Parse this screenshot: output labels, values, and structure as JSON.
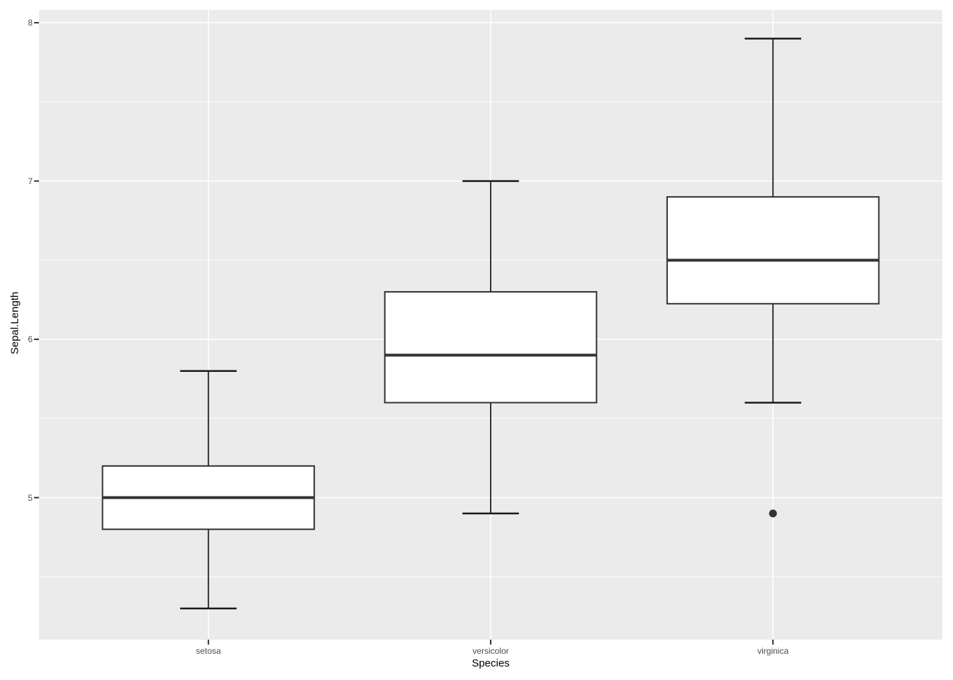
{
  "chart_data": {
    "type": "boxplot",
    "title": "",
    "xlabel": "Species",
    "ylabel": "Sepal.Length",
    "categories": [
      "setosa",
      "versicolor",
      "virginica"
    ],
    "y_axis": {
      "major_ticks": [
        5,
        6,
        7,
        8
      ],
      "minor_ticks": [
        4.5,
        5.5,
        6.5,
        7.5
      ],
      "range": [
        4.103,
        8.081
      ],
      "grid": "on"
    },
    "series": [
      {
        "category": "setosa",
        "whisker_low": 4.3,
        "q1": 4.8,
        "median": 5.0,
        "q3": 5.2,
        "whisker_high": 5.8,
        "outliers": []
      },
      {
        "category": "versicolor",
        "whisker_low": 4.9,
        "q1": 5.6,
        "median": 5.9,
        "q3": 6.3,
        "whisker_high": 7.0,
        "outliers": []
      },
      {
        "category": "virginica",
        "whisker_low": 5.6,
        "q1": 6.225,
        "median": 6.5,
        "q3": 6.9,
        "whisker_high": 7.9,
        "outliers": [
          4.9
        ]
      }
    ],
    "legend": "none",
    "colors": {
      "panel_background": "#EBEBEB",
      "gridline": "#FFFFFF",
      "box_fill": "#FFFFFF",
      "box_border": "#333333",
      "whisker_cap": "#1A1A1A",
      "outlier": "#333333",
      "tick_label": "#4D4D4D",
      "axis_title": "#000000",
      "axis_tick_mark": "#333333"
    }
  }
}
